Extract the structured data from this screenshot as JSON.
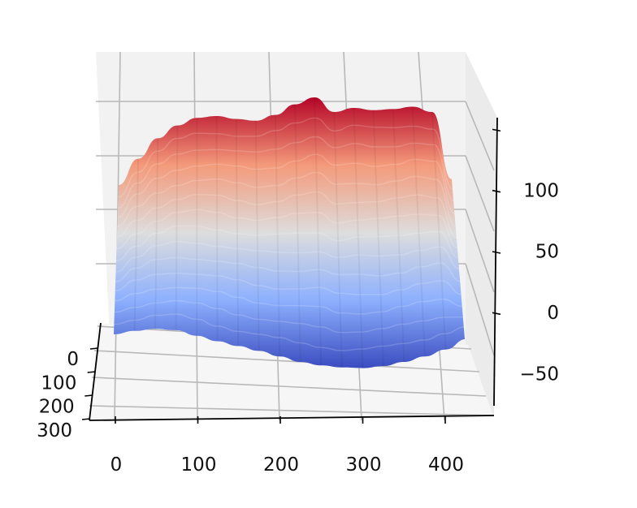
{
  "chart_data": {
    "type": "surface",
    "title": "",
    "xlabel": "",
    "ylabel": "",
    "zlabel": "",
    "colormap": "coolwarm",
    "grid": true,
    "x_ticks": [
      0,
      100,
      200,
      300,
      400
    ],
    "y_ticks": [
      0,
      100,
      200,
      300
    ],
    "z_ticks": [
      -50,
      0,
      50,
      100
    ],
    "x_tick_labels": [
      "0",
      "100",
      "200",
      "300",
      "400"
    ],
    "y_tick_labels": [
      "0",
      "100",
      "200",
      "300"
    ],
    "z_tick_labels": [
      "−50",
      "0",
      "50",
      "100"
    ],
    "xlim": [
      -25,
      450
    ],
    "ylim": [
      0,
      320
    ],
    "zlim": [
      -90,
      145
    ],
    "surface": {
      "x_samples": [
        0,
        25,
        50,
        75,
        100,
        125,
        150,
        175,
        200,
        225,
        250,
        275,
        300,
        325,
        350,
        375,
        400,
        425
      ],
      "z_min_front": [
        -38,
        -33,
        -30,
        -32,
        -40,
        -48,
        -55,
        -62,
        -70,
        -78,
        -83,
        -86,
        -87,
        -84,
        -78,
        -70,
        -60,
        -45
      ],
      "z_max_back": [
        -10,
        35,
        70,
        92,
        105,
        108,
        103,
        100,
        110,
        128,
        140,
        115,
        122,
        118,
        120,
        124,
        115,
        0
      ],
      "z_peak": 140,
      "z_trough": -87
    },
    "colors": {
      "low": "#3b4cc0",
      "mid": "#dddddd",
      "high": "#b40426"
    }
  }
}
